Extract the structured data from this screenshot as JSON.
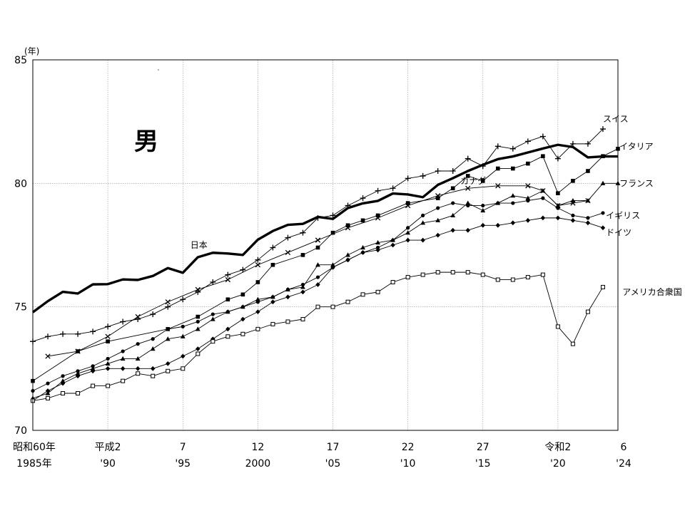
{
  "chart_data": {
    "type": "line",
    "title": "男",
    "y_unit": "(年)",
    "ylim": [
      70,
      85
    ],
    "y_ticks": [
      70,
      75,
      80,
      85
    ],
    "xlim": [
      1985,
      2024
    ],
    "grid": true,
    "x_ticks": [
      {
        "x": 1985,
        "era": "昭和60年",
        "year": "1985年"
      },
      {
        "x": 1990,
        "era": "平成2",
        "year": "'90"
      },
      {
        "x": 1995,
        "era": "7",
        "year": "'95"
      },
      {
        "x": 2000,
        "era": "12",
        "year": "2000"
      },
      {
        "x": 2005,
        "era": "17",
        "year": "'05"
      },
      {
        "x": 2010,
        "era": "22",
        "year": "'10"
      },
      {
        "x": 2015,
        "era": "27",
        "year": "'15"
      },
      {
        "x": 2020,
        "era": "令和2",
        "year": "'20"
      },
      {
        "x": 2024,
        "era": "6",
        "year": "'24"
      }
    ],
    "series": [
      {
        "name": "日本",
        "marker": "none",
        "bold": true,
        "label_at": [
          1995.5,
          77.5
        ],
        "x": [
          1985,
          1986,
          1987,
          1988,
          1989,
          1990,
          1991,
          1992,
          1993,
          1994,
          1995,
          1996,
          1997,
          1998,
          1999,
          2000,
          2001,
          2002,
          2003,
          2004,
          2005,
          2006,
          2007,
          2008,
          2009,
          2010,
          2011,
          2012,
          2013,
          2014,
          2015,
          2016,
          2017,
          2018,
          2019,
          2020,
          2021,
          2022,
          2023,
          2024
        ],
        "y": [
          74.78,
          75.23,
          75.61,
          75.54,
          75.91,
          75.92,
          76.11,
          76.09,
          76.25,
          76.57,
          76.38,
          77.01,
          77.19,
          77.16,
          77.1,
          77.72,
          78.07,
          78.32,
          78.36,
          78.64,
          78.56,
          79.0,
          79.19,
          79.29,
          79.59,
          79.55,
          79.44,
          79.94,
          80.21,
          80.5,
          80.75,
          80.98,
          81.09,
          81.25,
          81.41,
          81.56,
          81.47,
          81.05,
          81.09,
          81.09
        ]
      },
      {
        "name": "スイス",
        "marker": "plus",
        "label_at": [
          2023,
          82.6
        ],
        "x": [
          1985,
          1986,
          1987,
          1988,
          1989,
          1990,
          1991,
          1992,
          1993,
          1994,
          1995,
          1996,
          1997,
          1998,
          1999,
          2000,
          2001,
          2002,
          2003,
          2004,
          2005,
          2006,
          2007,
          2008,
          2009,
          2010,
          2011,
          2012,
          2013,
          2014,
          2015,
          2016,
          2017,
          2018,
          2019,
          2020,
          2021,
          2022,
          2023
        ],
        "y": [
          73.6,
          73.8,
          73.9,
          73.9,
          74.0,
          74.2,
          74.4,
          74.5,
          74.7,
          75.0,
          75.3,
          75.6,
          76.0,
          76.3,
          76.5,
          76.9,
          77.4,
          77.8,
          78.0,
          78.6,
          78.7,
          79.1,
          79.4,
          79.7,
          79.8,
          80.2,
          80.3,
          80.5,
          80.5,
          81.0,
          80.7,
          81.5,
          81.4,
          81.7,
          81.9,
          81.0,
          81.6,
          81.6,
          82.2
        ]
      },
      {
        "name": "イタリア",
        "marker": "square",
        "label_at": [
          2024.1,
          81.5
        ],
        "x": [
          1985,
          1988,
          1990,
          1994,
          1996,
          1998,
          1999,
          2000,
          2001,
          2003,
          2004,
          2005,
          2006,
          2007,
          2008,
          2010,
          2012,
          2013,
          2014,
          2015,
          2016,
          2017,
          2018,
          2019,
          2020,
          2021,
          2022,
          2023,
          2024
        ],
        "y": [
          72.0,
          73.2,
          73.6,
          74.1,
          74.6,
          75.3,
          75.5,
          76.0,
          76.7,
          77.1,
          77.4,
          78.0,
          78.3,
          78.5,
          78.7,
          79.2,
          79.4,
          79.8,
          80.3,
          80.1,
          80.6,
          80.6,
          80.8,
          81.1,
          79.6,
          80.1,
          80.5,
          81.1,
          81.4
        ]
      },
      {
        "name": "カナダ",
        "marker": "x",
        "label_at": [
          2013.5,
          80.1
        ],
        "x": [
          1986,
          1988,
          1990,
          1992,
          1994,
          1996,
          1998,
          2000,
          2002,
          2004,
          2006,
          2008,
          2010,
          2012,
          2014,
          2016,
          2018,
          2019,
          2020,
          2021,
          2022
        ],
        "y": [
          73.0,
          73.2,
          73.8,
          74.6,
          75.2,
          75.7,
          76.1,
          76.7,
          77.2,
          77.7,
          78.2,
          78.6,
          79.1,
          79.5,
          79.8,
          79.9,
          79.9,
          79.7,
          79.1,
          79.2,
          79.3
        ]
      },
      {
        "name": "フランス",
        "marker": "triangle",
        "label_at": [
          2024.1,
          80.0
        ],
        "x": [
          1985,
          1986,
          1987,
          1988,
          1989,
          1990,
          1991,
          1992,
          1993,
          1994,
          1995,
          1996,
          1997,
          1998,
          1999,
          2000,
          2001,
          2002,
          2003,
          2004,
          2005,
          2006,
          2007,
          2008,
          2009,
          2010,
          2011,
          2012,
          2013,
          2014,
          2015,
          2016,
          2017,
          2018,
          2019,
          2020,
          2021,
          2022,
          2023,
          2024
        ],
        "y": [
          71.3,
          71.5,
          72.0,
          72.3,
          72.5,
          72.7,
          72.9,
          72.9,
          73.3,
          73.7,
          73.8,
          74.1,
          74.5,
          74.8,
          75.0,
          75.3,
          75.4,
          75.7,
          75.8,
          76.7,
          76.7,
          77.1,
          77.4,
          77.6,
          77.7,
          78.0,
          78.4,
          78.5,
          78.7,
          79.2,
          78.9,
          79.2,
          79.5,
          79.4,
          79.7,
          79.1,
          79.3,
          79.3,
          80.0,
          80.0
        ]
      },
      {
        "name": "イギリス",
        "marker": "circle",
        "label_at": [
          2023.2,
          78.7
        ],
        "x": [
          1985,
          1986,
          1987,
          1988,
          1989,
          1990,
          1991,
          1992,
          1993,
          1994,
          1995,
          1996,
          1997,
          1998,
          1999,
          2000,
          2001,
          2002,
          2003,
          2004,
          2005,
          2006,
          2007,
          2008,
          2009,
          2010,
          2011,
          2012,
          2013,
          2014,
          2015,
          2016,
          2017,
          2018,
          2019,
          2020,
          2021,
          2022,
          2023
        ],
        "y": [
          71.6,
          71.9,
          72.2,
          72.4,
          72.6,
          72.9,
          73.2,
          73.5,
          73.7,
          74.1,
          74.2,
          74.4,
          74.7,
          74.8,
          75.0,
          75.2,
          75.4,
          75.7,
          75.9,
          76.2,
          76.6,
          76.9,
          77.2,
          77.4,
          77.7,
          78.2,
          78.7,
          79.0,
          79.2,
          79.1,
          79.1,
          79.2,
          79.2,
          79.3,
          79.4,
          79.0,
          78.7,
          78.6,
          78.8
        ]
      },
      {
        "name": "ドイツ",
        "marker": "diamond",
        "label_at": [
          2023.2,
          78.0
        ],
        "x": [
          1985,
          1986,
          1987,
          1988,
          1989,
          1990,
          1991,
          1992,
          1993,
          1994,
          1995,
          1996,
          1997,
          1998,
          1999,
          2000,
          2001,
          2002,
          2003,
          2004,
          2005,
          2006,
          2007,
          2008,
          2009,
          2010,
          2011,
          2012,
          2013,
          2014,
          2015,
          2016,
          2017,
          2018,
          2019,
          2020,
          2021,
          2022,
          2023
        ],
        "y": [
          71.2,
          71.6,
          71.9,
          72.2,
          72.4,
          72.5,
          72.5,
          72.5,
          72.5,
          72.7,
          73.0,
          73.3,
          73.7,
          74.1,
          74.5,
          74.8,
          75.2,
          75.4,
          75.6,
          75.9,
          76.6,
          76.9,
          77.2,
          77.3,
          77.5,
          77.7,
          77.7,
          77.9,
          78.1,
          78.1,
          78.3,
          78.3,
          78.4,
          78.5,
          78.6,
          78.6,
          78.5,
          78.4,
          78.2
        ]
      },
      {
        "name": "アメリカ合衆国",
        "marker": "open-square",
        "label_at": [
          2024.3,
          75.6
        ],
        "x": [
          1985,
          1986,
          1987,
          1988,
          1989,
          1990,
          1991,
          1992,
          1993,
          1994,
          1995,
          1996,
          1997,
          1998,
          1999,
          2000,
          2001,
          2002,
          2003,
          2004,
          2005,
          2006,
          2007,
          2008,
          2009,
          2010,
          2011,
          2012,
          2013,
          2014,
          2015,
          2016,
          2017,
          2018,
          2019,
          2020,
          2021,
          2022,
          2023
        ],
        "y": [
          71.2,
          71.3,
          71.5,
          71.5,
          71.8,
          71.8,
          72.0,
          72.3,
          72.2,
          72.4,
          72.5,
          73.1,
          73.6,
          73.8,
          73.9,
          74.1,
          74.3,
          74.4,
          74.5,
          75.0,
          75.0,
          75.2,
          75.5,
          75.6,
          76.0,
          76.2,
          76.3,
          76.4,
          76.4,
          76.4,
          76.3,
          76.1,
          76.1,
          76.2,
          76.3,
          74.2,
          73.5,
          74.8,
          75.8
        ]
      }
    ]
  }
}
